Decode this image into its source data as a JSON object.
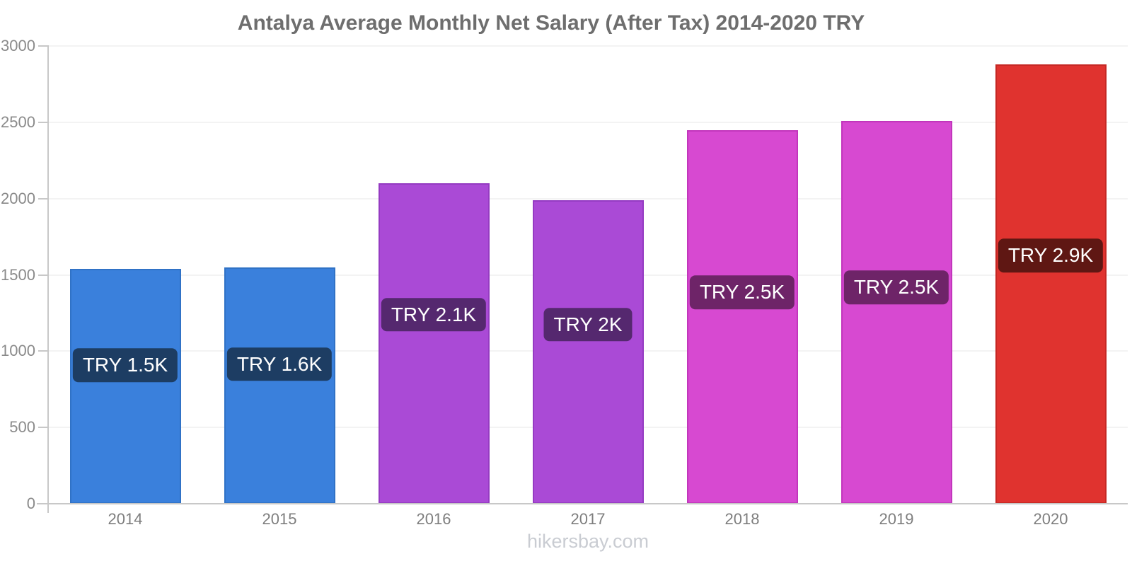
{
  "chart_data": {
    "type": "bar",
    "title": "Antalya Average Monthly Net Salary (After Tax) 2014-2020 TRY",
    "categories": [
      "2014",
      "2015",
      "2016",
      "2017",
      "2018",
      "2019",
      "2020"
    ],
    "values": [
      1540,
      1550,
      2100,
      1990,
      2450,
      2510,
      2880
    ],
    "bar_labels": [
      "TRY 1.5K",
      "TRY 1.6K",
      "TRY 2.1K",
      "TRY 2K",
      "TRY 2.5K",
      "TRY 2.5K",
      "TRY 2.9K"
    ],
    "xlabel": "",
    "ylabel": "",
    "ylim": [
      0,
      3000
    ],
    "yticks": [
      0,
      500,
      1000,
      1500,
      2000,
      2500,
      3000
    ],
    "grid": "horizontal",
    "legend": "none",
    "colors": {
      "bar_fill": [
        "#3A80DC",
        "#3A80DC",
        "#AA4AD6",
        "#AA4AD6",
        "#D749D1",
        "#D749D1",
        "#E0332F"
      ],
      "bar_border": [
        "#3072C6",
        "#3072C6",
        "#953BC2",
        "#953BC2",
        "#C236BC",
        "#C236BC",
        "#C62824"
      ],
      "badge_bg": [
        "#1D3D63",
        "#1D3D63",
        "#55286F",
        "#55286F",
        "#6E2468",
        "#6E2468",
        "#5F1713"
      ],
      "badge_text": "#FFFFFF",
      "title_text": "#6E6E6E",
      "axis": "#C8C8C8",
      "gridline": "#F3F3F3",
      "footer_text": "#C9CCD2"
    }
  },
  "footer": {
    "text": "hikersbay.com"
  }
}
